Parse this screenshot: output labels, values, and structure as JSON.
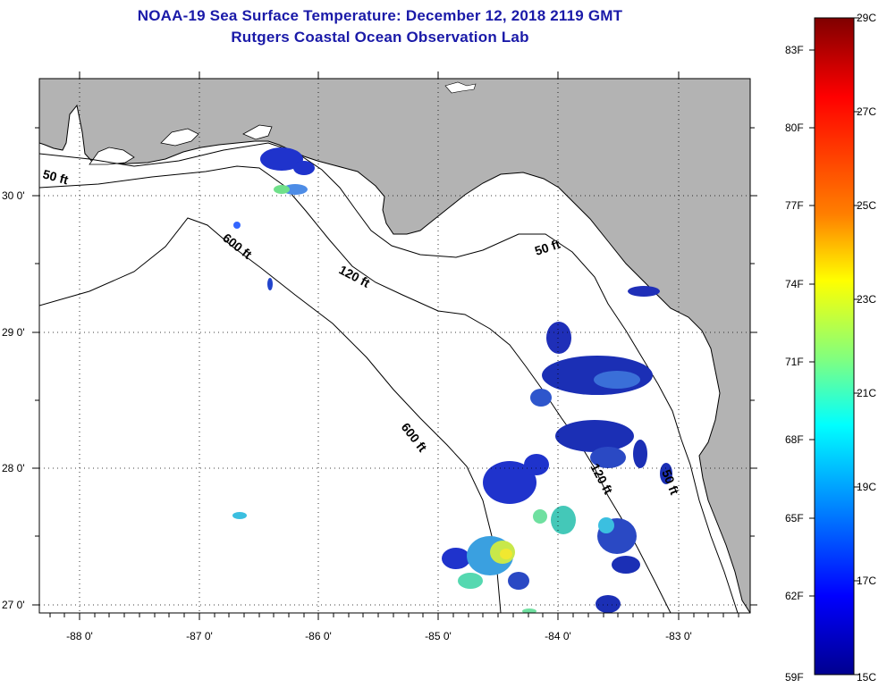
{
  "titles": {
    "line1": "NOAA-19 Sea Surface Temperature:  December 12, 2018 2119 GMT",
    "line2": "Rutgers Coastal Ocean Observation Lab"
  },
  "map": {
    "longitude_ticks": [
      "-88 0'",
      "-87 0'",
      "-86 0'",
      "-85 0'",
      "-84 0'",
      "-83 0'"
    ],
    "latitude_ticks": [
      "30 0'",
      "29 0'",
      "28 0'",
      "27 0'"
    ],
    "contour_labels": [
      "50 ft",
      "600 ft",
      "120 ft",
      "50 ft",
      "600 ft",
      "120 ft",
      "50 ft"
    ],
    "land_color": "#b3b3b3",
    "ocean_color": "#ffffff"
  },
  "colorbar": {
    "fahrenheit_labels": [
      "83F",
      "80F",
      "77F",
      "74F",
      "71F",
      "68F",
      "65F",
      "62F",
      "59F"
    ],
    "celsius_labels": [
      "29C",
      "27C",
      "25C",
      "23C",
      "21C",
      "19C",
      "17C",
      "15C"
    ],
    "colors": [
      "#7f0000",
      "#ff0000",
      "#ff8000",
      "#ffff00",
      "#80ff80",
      "#00ffff",
      "#0080ff",
      "#0000ff",
      "#00008f"
    ]
  }
}
